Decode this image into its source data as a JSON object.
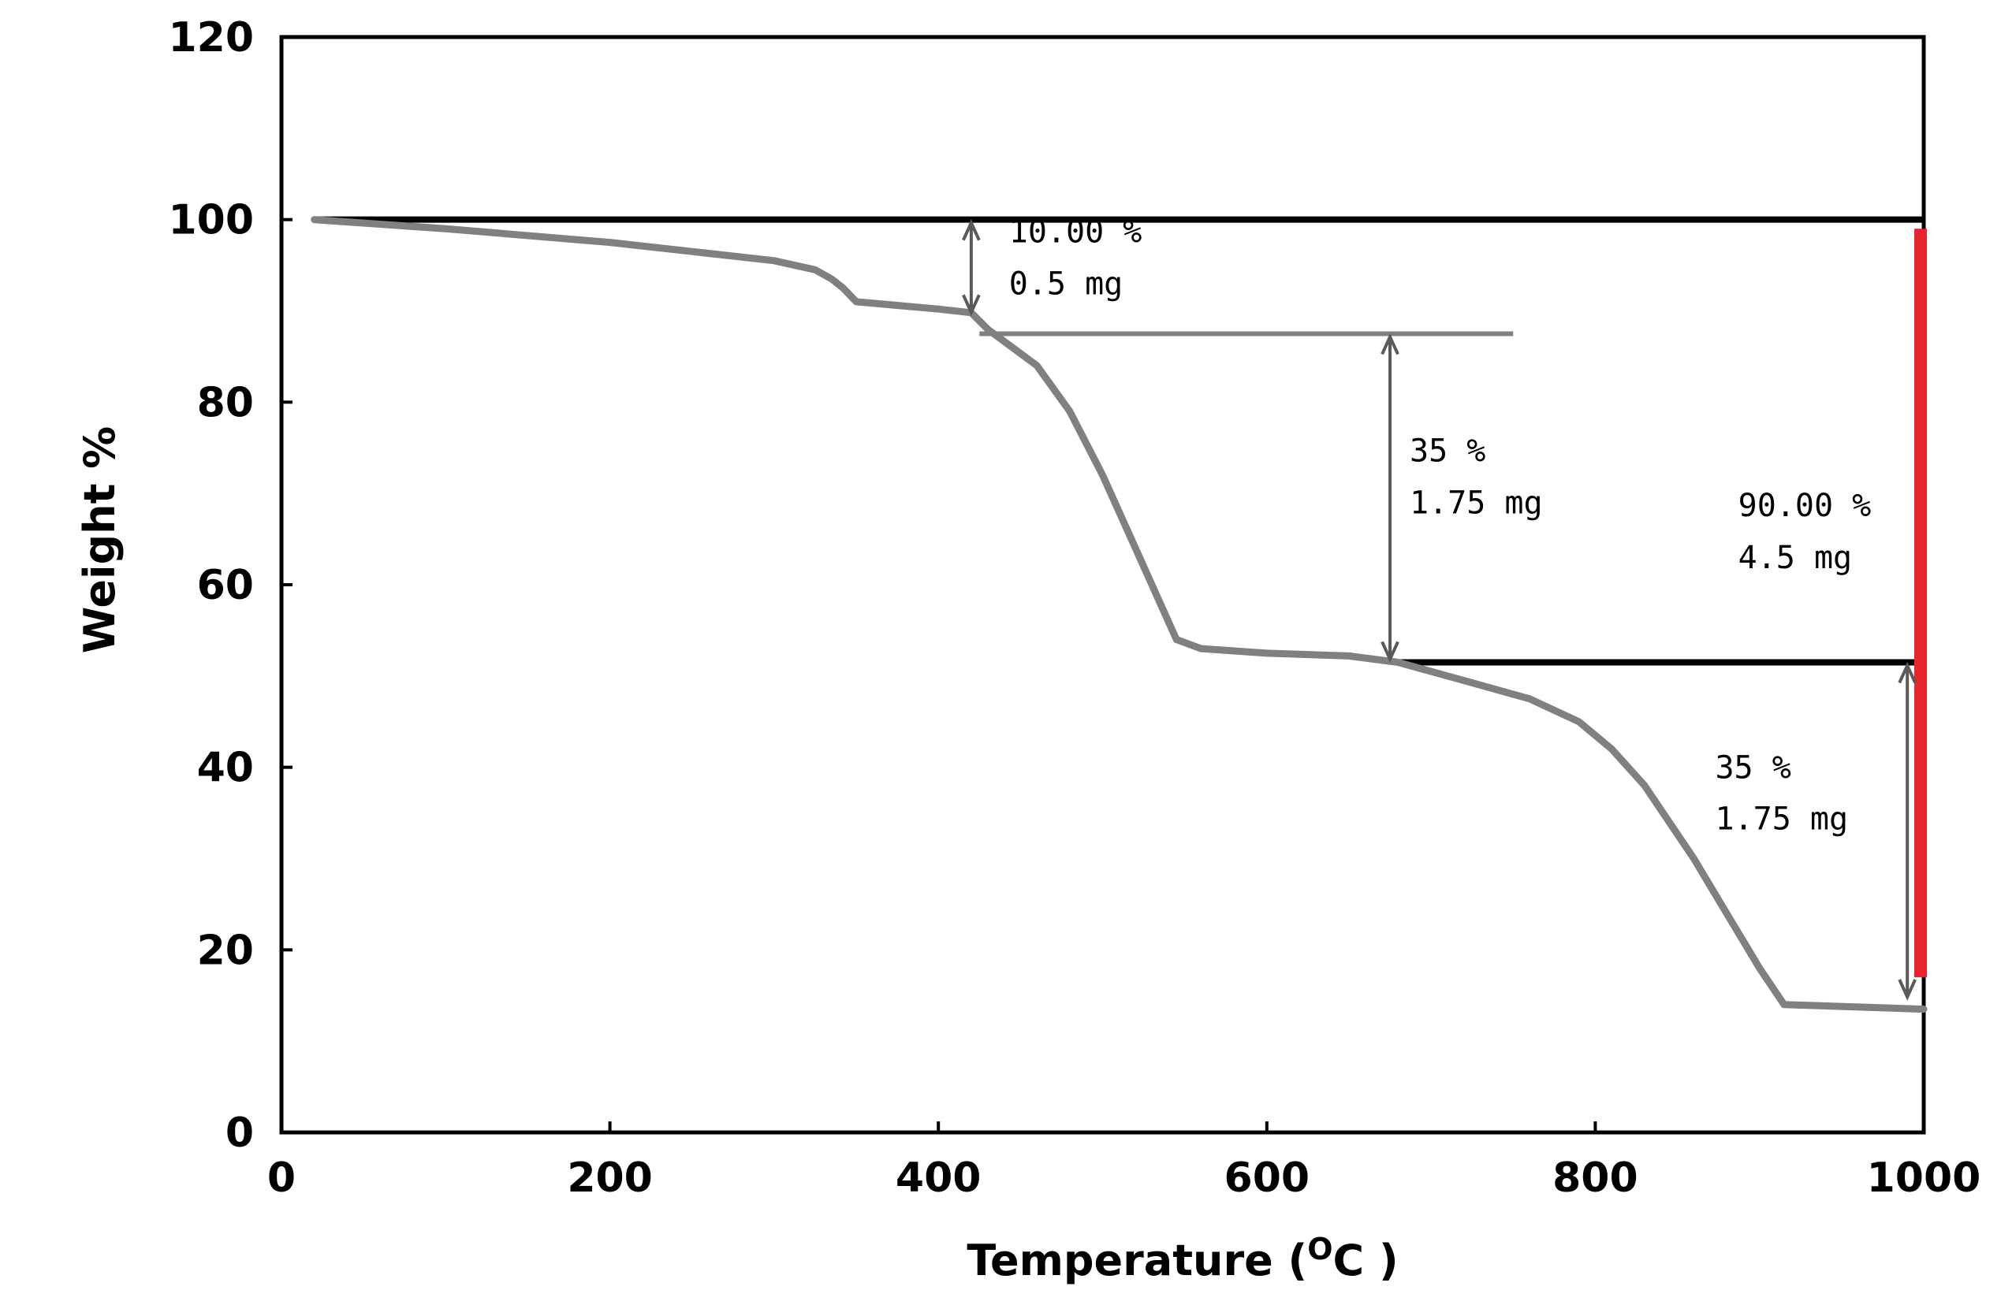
{
  "chart_data": {
    "type": "line",
    "title": "",
    "xlabel": "Temperature (",
    "xlabel_sup": "O",
    "xlabel_unit": "C )",
    "ylabel": "Weight %",
    "xlim": [
      0,
      1000
    ],
    "ylim": [
      0,
      120
    ],
    "xticks": [
      "0",
      "200",
      "400",
      "600",
      "800",
      "1000"
    ],
    "yticks": [
      "0",
      "20",
      "40",
      "60",
      "80",
      "100",
      "120"
    ],
    "grid": false,
    "series": [
      {
        "name": "TGA curve",
        "color": "#808080",
        "x": [
          20,
          100,
          200,
          250,
          300,
          325,
          335,
          342,
          350,
          400,
          420,
          430,
          460,
          480,
          500,
          520,
          535,
          545,
          560,
          600,
          650,
          680,
          720,
          760,
          790,
          810,
          830,
          860,
          880,
          900,
          915,
          1000
        ],
        "y": [
          100,
          99,
          97.5,
          96.5,
          95.5,
          94.5,
          93.5,
          92.5,
          91,
          90.2,
          89.8,
          88,
          84,
          79,
          72,
          64,
          58,
          54,
          53,
          52.5,
          52.2,
          51.5,
          49.5,
          47.5,
          45,
          42,
          38,
          30,
          24,
          18,
          14,
          13.5
        ]
      }
    ],
    "reference_lines": [
      {
        "name": "initial-weight-line",
        "color": "#000000",
        "x": [
          20,
          1000
        ],
        "y": 100
      },
      {
        "name": "first-plateau-line",
        "color": "#808080",
        "x": [
          425,
          750
        ],
        "y": 87.5
      },
      {
        "name": "second-plateau-line",
        "color": "#000000",
        "x": [
          680,
          1000
        ],
        "y": 51.5
      },
      {
        "name": "total-loss-bar",
        "color": "#e8252c",
        "x": 1000,
        "y": [
          17,
          99
        ]
      }
    ],
    "arrows": [
      {
        "name": "loss-arrow-1",
        "x": 420,
        "y": [
          100,
          89.5
        ]
      },
      {
        "name": "loss-arrow-2",
        "x": 675,
        "y": [
          87.5,
          51.5
        ]
      },
      {
        "name": "loss-arrow-3",
        "x": 990,
        "y": [
          51.5,
          14.5
        ]
      }
    ],
    "annotations": [
      {
        "name": "annotation-step1",
        "lines": [
          "10.00 %",
          "0.5 mg"
        ],
        "x": 443,
        "y": [
          97.5,
          91.8
        ]
      },
      {
        "name": "annotation-step2",
        "lines": [
          "35 %",
          "1.75 mg"
        ],
        "x": 687,
        "y": [
          73.5,
          67.8
        ]
      },
      {
        "name": "annotation-total",
        "lines": [
          "90.00 %",
          "4.5 mg"
        ],
        "x": 887,
        "y": [
          67.5,
          61.8
        ]
      },
      {
        "name": "annotation-step3",
        "lines": [
          "35 %",
          "1.75 mg"
        ],
        "x": 873,
        "y": [
          38.8,
          33.2
        ]
      }
    ]
  }
}
